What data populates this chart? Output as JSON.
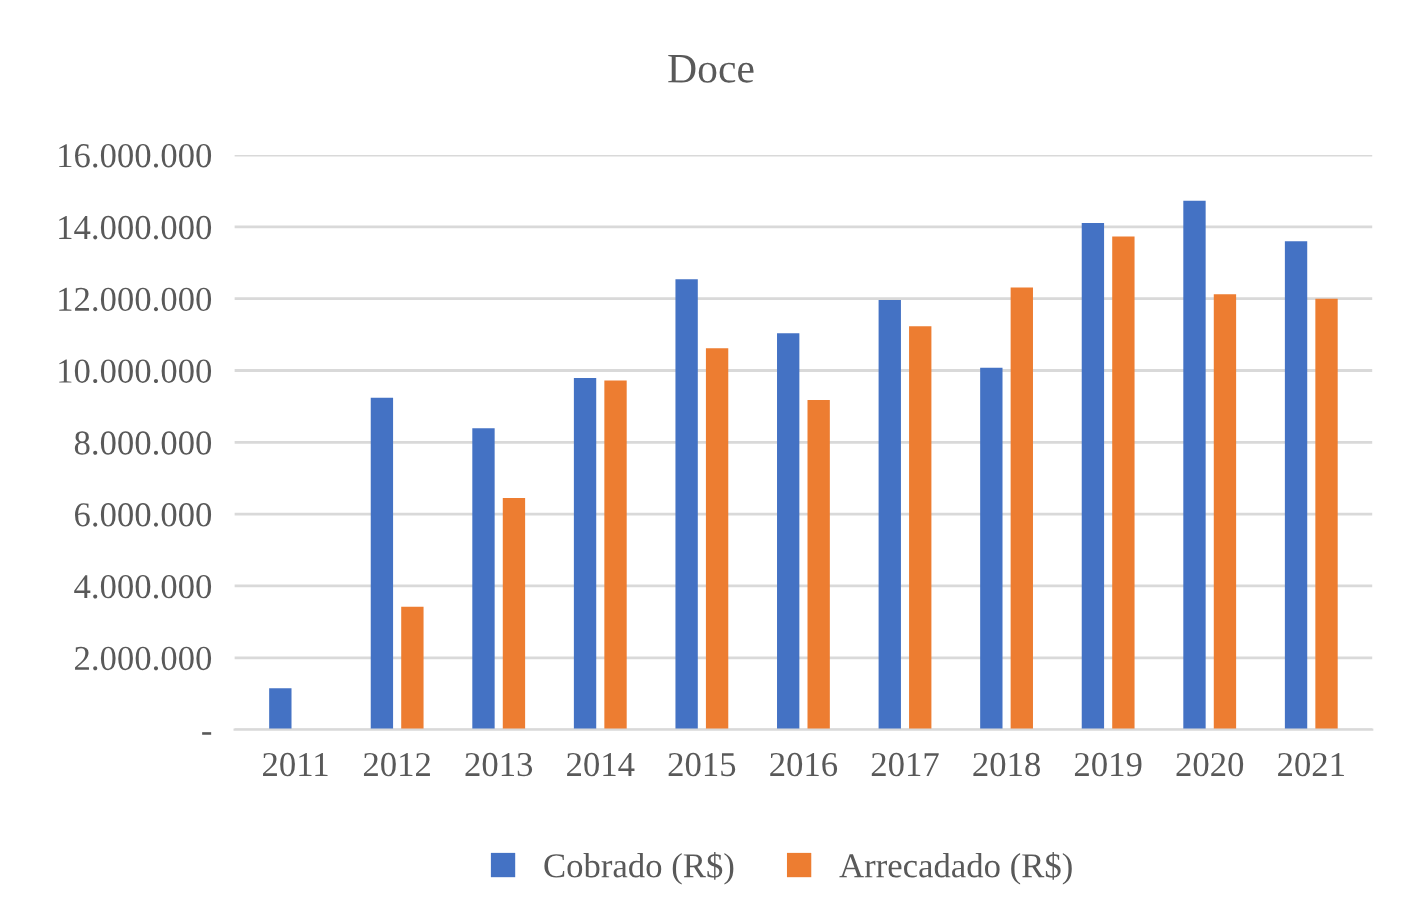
{
  "chart_data": {
    "type": "bar",
    "title": "Doce",
    "categories": [
      "2011",
      "2012",
      "2013",
      "2014",
      "2015",
      "2016",
      "2017",
      "2018",
      "2019",
      "2020",
      "2021"
    ],
    "series": [
      {
        "name": "Cobrado (R$)",
        "color": "#4472c4",
        "values": [
          1150000,
          9240000,
          8390000,
          9790000,
          12540000,
          11040000,
          11960000,
          10080000,
          14110000,
          14730000,
          13600000
        ]
      },
      {
        "name": "Arrecadado (R$)",
        "color": "#ed7d31",
        "values": [
          null,
          3420000,
          6450000,
          9720000,
          10620000,
          9180000,
          11230000,
          12310000,
          13730000,
          12120000,
          12000000
        ]
      }
    ],
    "ylim": [
      0,
      16000000
    ],
    "yticks": [
      {
        "value": 0,
        "label": "-"
      },
      {
        "value": 2000000,
        "label": "2.000.000"
      },
      {
        "value": 4000000,
        "label": "4.000.000"
      },
      {
        "value": 6000000,
        "label": "6.000.000"
      },
      {
        "value": 8000000,
        "label": "8.000.000"
      },
      {
        "value": 10000000,
        "label": "10.000.000"
      },
      {
        "value": 12000000,
        "label": "12.000.000"
      },
      {
        "value": 14000000,
        "label": "14.000.000"
      },
      {
        "value": 16000000,
        "label": "16.000.000"
      }
    ],
    "grid": "y",
    "legend": "bottom"
  }
}
